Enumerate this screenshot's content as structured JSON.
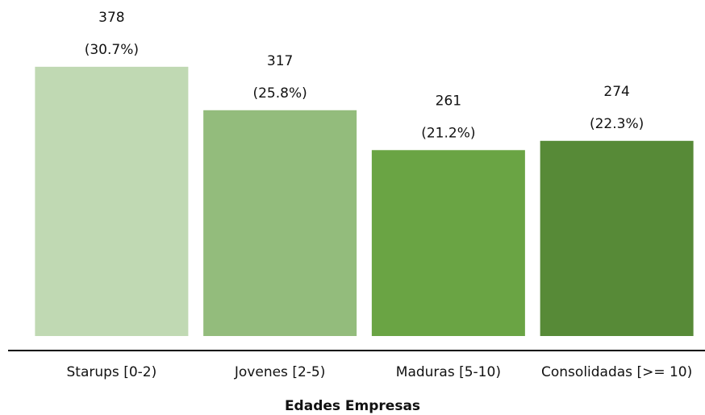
{
  "chart_data": {
    "type": "bar",
    "xlabel": "Edades Empresas",
    "categories": [
      "Starups [0-2)",
      "Jovenes [2-5)",
      "Maduras [5-10)",
      "Consolidadas [>= 10)"
    ],
    "values": [
      378,
      317,
      261,
      274
    ],
    "percent_labels": [
      "(30.7%)",
      "(25.8%)",
      "(21.2%)",
      "(22.3%)"
    ],
    "colors": [
      "#c0d9b3",
      "#93bc7c",
      "#6aa444",
      "#578a37"
    ],
    "ylim": [
      0,
      400
    ]
  }
}
